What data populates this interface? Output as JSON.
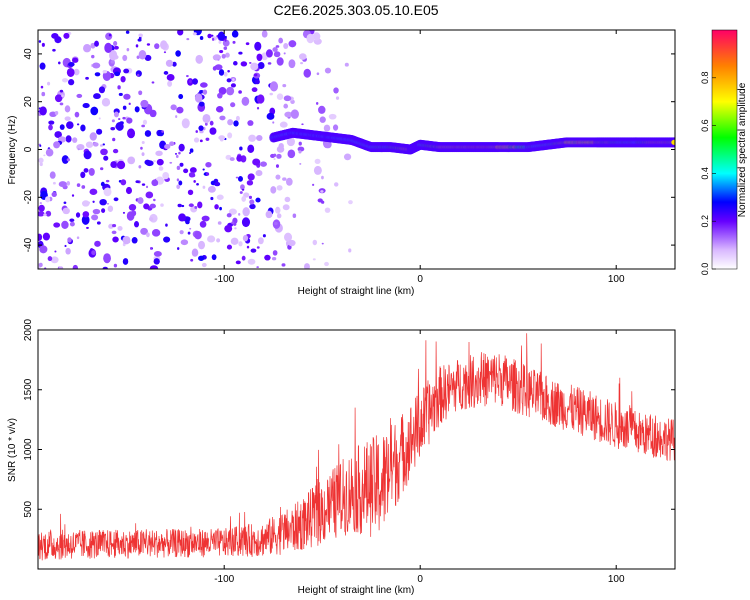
{
  "title": "C2E6.2025.303.05.10.E05",
  "chart_data": [
    {
      "type": "heatmap",
      "name": "spectrogram",
      "xlabel": "Height of straight line (km)",
      "ylabel": "Frequency (Hz)",
      "xlim": [
        -195,
        130
      ],
      "ylim": [
        -50,
        50
      ],
      "xticks": [
        -100,
        0,
        100
      ],
      "xtick_labels": [
        "-100",
        "0",
        "100"
      ],
      "yticks": [
        -40,
        -20,
        0,
        20,
        40
      ],
      "ytick_labels": [
        "-40",
        "-20",
        "0",
        "20",
        "40"
      ],
      "colorbar": {
        "label": "Normalized spectral amplitude",
        "range": [
          0,
          1
        ],
        "ticks": [
          0.0,
          0.2,
          0.4,
          0.6,
          0.8
        ],
        "tick_labels": [
          "0.0",
          "0.2",
          "0.4",
          "0.6",
          "0.8"
        ]
      },
      "ridge": [
        {
          "x": -75,
          "y": 5,
          "amp": 0.45
        },
        {
          "x": -65,
          "y": 7,
          "amp": 0.4
        },
        {
          "x": -55,
          "y": 6,
          "amp": 0.4
        },
        {
          "x": -45,
          "y": 5,
          "amp": 0.4
        },
        {
          "x": -35,
          "y": 4,
          "amp": 0.45
        },
        {
          "x": -25,
          "y": 1,
          "amp": 0.5
        },
        {
          "x": -15,
          "y": 1,
          "amp": 0.6
        },
        {
          "x": -5,
          "y": 0,
          "amp": 0.85
        },
        {
          "x": 0,
          "y": 2,
          "amp": 0.5
        },
        {
          "x": 10,
          "y": 1,
          "amp": 0.75
        },
        {
          "x": 20,
          "y": 1,
          "amp": 0.85
        },
        {
          "x": 30,
          "y": 1,
          "amp": 0.9
        },
        {
          "x": 40,
          "y": 1,
          "amp": 0.85
        },
        {
          "x": 55,
          "y": 1,
          "amp": 0.55
        },
        {
          "x": 65,
          "y": 2,
          "amp": 0.5
        },
        {
          "x": 75,
          "y": 3,
          "amp": 0.85
        },
        {
          "x": 90,
          "y": 3,
          "amp": 0.8
        },
        {
          "x": 100,
          "y": 3,
          "amp": 0.6
        },
        {
          "x": 110,
          "y": 3,
          "amp": 0.5
        },
        {
          "x": 120,
          "y": 3,
          "amp": 0.85
        },
        {
          "x": 130,
          "y": 3,
          "amp": 0.8
        }
      ]
    },
    {
      "type": "line",
      "name": "snr",
      "xlabel": "Height of straight line (km)",
      "ylabel": "SNR (10 * v/v)",
      "xlim": [
        -195,
        130
      ],
      "ylim": [
        0,
        2000
      ],
      "xticks": [
        -100,
        0,
        100
      ],
      "xtick_labels": [
        "-100",
        "0",
        "100"
      ],
      "yticks": [
        500,
        1000,
        1500,
        2000
      ],
      "ytick_labels": [
        "500",
        "1000",
        "1500",
        "2000"
      ],
      "series": [
        {
          "name": "SNR",
          "color": "#ee3333",
          "envelope": [
            {
              "x": -195,
              "y": 200,
              "spread": 130
            },
            {
              "x": -150,
              "y": 210,
              "spread": 120
            },
            {
              "x": -100,
              "y": 220,
              "spread": 120
            },
            {
              "x": -80,
              "y": 250,
              "spread": 150
            },
            {
              "x": -65,
              "y": 330,
              "spread": 200
            },
            {
              "x": -50,
              "y": 480,
              "spread": 280
            },
            {
              "x": -35,
              "y": 650,
              "spread": 350
            },
            {
              "x": -20,
              "y": 700,
              "spread": 450
            },
            {
              "x": -10,
              "y": 950,
              "spread": 350
            },
            {
              "x": 0,
              "y": 1200,
              "spread": 300
            },
            {
              "x": 10,
              "y": 1450,
              "spread": 250
            },
            {
              "x": 20,
              "y": 1550,
              "spread": 220
            },
            {
              "x": 30,
              "y": 1580,
              "spread": 230
            },
            {
              "x": 40,
              "y": 1600,
              "spread": 230
            },
            {
              "x": 55,
              "y": 1480,
              "spread": 220
            },
            {
              "x": 70,
              "y": 1380,
              "spread": 200
            },
            {
              "x": 85,
              "y": 1300,
              "spread": 200
            },
            {
              "x": 100,
              "y": 1200,
              "spread": 200
            },
            {
              "x": 115,
              "y": 1120,
              "spread": 180
            },
            {
              "x": 130,
              "y": 1080,
              "spread": 180
            }
          ]
        }
      ]
    }
  ]
}
